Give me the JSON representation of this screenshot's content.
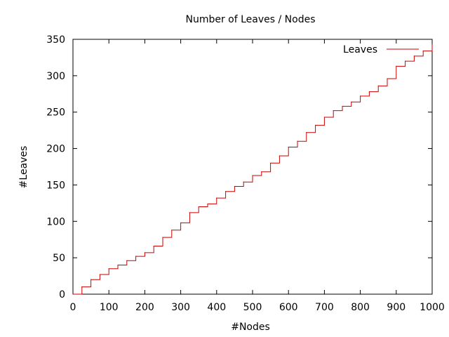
{
  "chart_data": {
    "type": "line",
    "title": "Number of Leaves / Nodes",
    "xlabel": "#Nodes",
    "ylabel": "#Leaves",
    "xlim": [
      0,
      1000
    ],
    "ylim": [
      0,
      350
    ],
    "xticks": [
      "0",
      "100",
      "200",
      "300",
      "400",
      "500",
      "600",
      "700",
      "800",
      "900",
      "1000"
    ],
    "yticks": [
      "0",
      "50",
      "100",
      "150",
      "200",
      "250",
      "300",
      "350"
    ],
    "grid": false,
    "legend_position": "top-right",
    "series": [
      {
        "name": "Leaves",
        "color": "#cc0000",
        "x": [
          0,
          25,
          50,
          75,
          100,
          125,
          150,
          175,
          200,
          225,
          250,
          275,
          300,
          325,
          350,
          375,
          400,
          425,
          450,
          475,
          500,
          525,
          550,
          575,
          600,
          625,
          650,
          675,
          700,
          725,
          750,
          775,
          800,
          825,
          850,
          875,
          900,
          925,
          950,
          975,
          1000
        ],
        "y": [
          0,
          10,
          20,
          27,
          35,
          40,
          46,
          52,
          57,
          66,
          78,
          88,
          98,
          112,
          120,
          124,
          132,
          141,
          148,
          154,
          163,
          168,
          180,
          190,
          202,
          210,
          222,
          232,
          243,
          252,
          258,
          264,
          272,
          278,
          286,
          296,
          313,
          320,
          327,
          334,
          343
        ]
      }
    ]
  }
}
